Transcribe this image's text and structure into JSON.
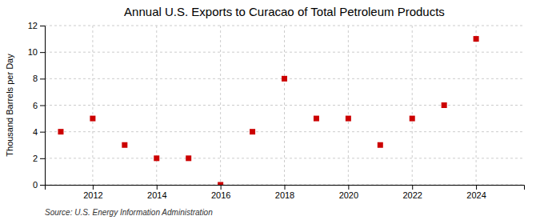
{
  "chart_data": {
    "type": "scatter",
    "title": "Annual U.S. Exports to Curacao of Total Petroleum Products",
    "ylabel": "Thousand Barrels per Day",
    "annotation": "Source: U.S. Energy Information Administration",
    "x": [
      2011,
      2012,
      2013,
      2014,
      2015,
      2016,
      2017,
      2018,
      2019,
      2020,
      2021,
      2022,
      2023,
      2024
    ],
    "values": [
      4,
      5,
      3,
      2,
      2,
      0,
      4,
      8,
      5,
      5,
      3,
      5,
      6,
      11
    ],
    "color": "#cc0000",
    "marker": "square",
    "xlim": [
      2010.5,
      2025.5
    ],
    "xticks": [
      2012,
      2014,
      2016,
      2018,
      2020,
      2022,
      2024
    ],
    "ylim": [
      0,
      12
    ],
    "yticks": [
      0,
      2,
      4,
      6,
      8,
      10,
      12
    ],
    "grid": true
  }
}
